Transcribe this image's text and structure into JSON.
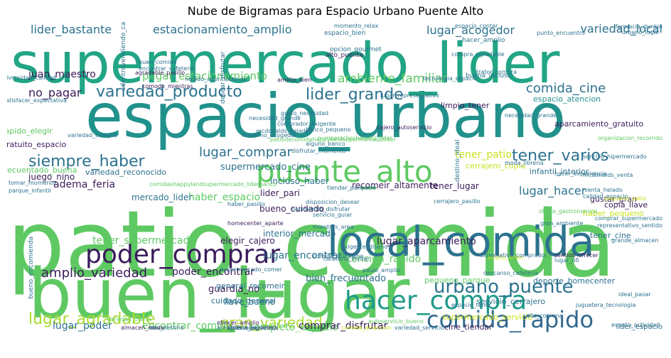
{
  "title": "Nube de Bigramas para Espacio Urbano Puente Alto",
  "words": [
    {
      "text": "patio_comida",
      "color": "#5ec962"
    },
    {
      "text": "espacio_urbano",
      "color": "#21918c"
    },
    {
      "text": "buen_lugar",
      "color": "#5ec962"
    },
    {
      "text": "supermercado_lider",
      "color": "#21a585"
    },
    {
      "text": "local_comida",
      "color": "#2c728e"
    },
    {
      "text": "puente_alto",
      "color": "#5ec962"
    },
    {
      "text": "poder_comprar",
      "color": "#3b1c5a"
    },
    {
      "text": "hacer_compra",
      "color": "#1f9a8a"
    },
    {
      "text": "comida_rapido",
      "color": "#31688e"
    },
    {
      "text": "variedad_producto",
      "color": "#2c728e"
    },
    {
      "text": "lider_grande",
      "color": "#2c728e"
    },
    {
      "text": "urbano_puente",
      "color": "#2c728e"
    },
    {
      "text": "siempre_haber",
      "color": "#2c728e"
    },
    {
      "text": "tener_varios",
      "color": "#2c728e"
    },
    {
      "text": "comida_cine",
      "color": "#2c728e"
    },
    {
      "text": "lugar_agradable",
      "color": "#a8db34"
    },
    {
      "text": "gran_variedad",
      "color": "#a8db34"
    },
    {
      "text": "amplio_variedad",
      "color": "#3b1c5a"
    },
    {
      "text": "lugar_comprar",
      "color": "#2c728e"
    },
    {
      "text": "ambiente_familiar",
      "color": "#5ec962"
    },
    {
      "text": "estacionamiento_amplio",
      "color": "#2c728e"
    },
    {
      "text": "lider_bastante",
      "color": "#2c728e"
    },
    {
      "text": "lugar_acogedor",
      "color": "#2c728e"
    },
    {
      "text": "variedad_local",
      "color": "#2c728e"
    },
    {
      "text": "pagar_estacionamiento",
      "color": "#5ec962"
    },
    {
      "text": "juan_maestro",
      "color": "#3b1c5a"
    },
    {
      "text": "no_pagar",
      "color": "#3b1c5a"
    },
    {
      "text": "lugar_hacer",
      "color": "#2c728e"
    },
    {
      "text": "tener_patio",
      "color": "#c8e020"
    },
    {
      "text": "adema_feria",
      "color": "#3b1c5a"
    },
    {
      "text": "haber_espacio",
      "color": "#5ec962"
    },
    {
      "text": "supermercado_cine",
      "color": "#2c728e"
    },
    {
      "text": "tener_supermercado",
      "color": "#5ec962"
    },
    {
      "text": "encontrar_comida",
      "color": "#5ec962"
    },
    {
      "text": "lugar_poder",
      "color": "#2c728e"
    },
    {
      "text": "completo_espacio",
      "color": "#5ec962"
    },
    {
      "text": "comprar_disfrutar",
      "color": "#3b1c5a"
    },
    {
      "text": "poder_encontrar",
      "color": "#3b1c5a"
    },
    {
      "text": "lugar_encontrar",
      "color": "#2c728e"
    },
    {
      "text": "lugar_aparcamiento",
      "color": "#3b1c5a"
    },
    {
      "text": "atencion_rapido",
      "color": "#5ec962"
    },
    {
      "text": "guardia_no",
      "color": "#3b1c5a"
    },
    {
      "text": "llave_bueno",
      "color": "#2c728e"
    },
    {
      "text": "elegir_cajero",
      "color": "#3b1c5a"
    },
    {
      "text": "tener_lugar",
      "color": "#3b1c5a"
    },
    {
      "text": "lider_pari",
      "color": "#3b1c5a"
    },
    {
      "text": "incluso_haber",
      "color": "#2c728e"
    },
    {
      "text": "recomeir_altamente",
      "color": "#3b1c5a"
    },
    {
      "text": "bueno_cuidado",
      "color": "#3b1c5a"
    },
    {
      "text": "interior_mercado",
      "color": "#2c728e"
    },
    {
      "text": "bien_frecuentado",
      "color": "#2c728e"
    },
    {
      "text": "cuidado_general",
      "color": "#2c728e"
    },
    {
      "text": "general_recomeir",
      "color": "#2c728e"
    },
    {
      "text": "mercado_lider",
      "color": "#2c728e"
    },
    {
      "text": "juego_nino",
      "color": "#3b1c5a"
    },
    {
      "text": "gratuito_espacio",
      "color": "#3b1c5a"
    },
    {
      "text": "rapido_elegir",
      "color": "#5ec962"
    },
    {
      "text": "frecuentado_buena",
      "color": "#5ec962"
    },
    {
      "text": "variedad_reconocido",
      "color": "#2c728e"
    },
    {
      "text": "aparcamiento_gratuito",
      "color": "#3b1c5a"
    },
    {
      "text": "limpio_tener",
      "color": "#3b1c5a"
    },
    {
      "text": "espacio_atencion",
      "color": "#21918c"
    },
    {
      "text": "infantil_interior",
      "color": "#2c728e"
    },
    {
      "text": "haber_pequeno",
      "color": "#c8e020"
    },
    {
      "text": "copia_llave",
      "color": "#3b1c5a"
    },
    {
      "text": "gustar_gran",
      "color": "#3b1c5a"
    },
    {
      "text": "tener_cine",
      "color": "#2c728e"
    },
    {
      "text": "deporte_homecenter",
      "color": "#2c728e"
    },
    {
      "text": "supermercado_servicio",
      "color": "#c8e020"
    },
    {
      "text": "servicio_cerrajero",
      "color": "#2c728e"
    },
    {
      "text": "pequeno_parque",
      "color": "#5ec962"
    },
    {
      "text": "cine_tiendar",
      "color": "#3b1c5a"
    },
    {
      "text": "cerrajero_copia",
      "color": "#c8e020"
    },
    {
      "text": "lider_espacio",
      "color": "#2c728e"
    },
    {
      "text": "espacio_bien",
      "color": "#2c728e"
    },
    {
      "text": "hacer_amplio",
      "color": "#2c728e"
    },
    {
      "text": "opcion_gourmet",
      "color": "#2c728e"
    },
    {
      "text": "alto_puente",
      "color": "#3b1c5a"
    },
    {
      "text": "buena_incluso",
      "color": "#2c728e"
    },
    {
      "text": "comodo_mientras",
      "color": "#3b1c5a"
    },
    {
      "text": "amplio_bien",
      "color": "#3b1c5a"
    },
    {
      "text": "buen_comida",
      "color": "#2c728e"
    },
    {
      "text": "banco_pequeno",
      "color": "#2c728e"
    },
    {
      "text": "alguno_banco",
      "color": "#2c728e"
    },
    {
      "text": "cajero_autoservicio",
      "color": "#3b1c5a"
    },
    {
      "text": "gusto_necesidad",
      "color": "#2c728e"
    },
    {
      "text": "necesidad_grande",
      "color": "#2c728e"
    },
    {
      "text": "tecnologia_espacio",
      "color": "#2c728e"
    },
    {
      "text": "trator_compra",
      "color": "#2c728e"
    },
    {
      "text": "variedad_compra",
      "color": "#2c728e"
    },
    {
      "text": "helado_adentroteindo",
      "color": "#2c728e"
    },
    {
      "text": "diversidad_calidad",
      "color": "#2c728e"
    },
    {
      "text": "satisfacer_expectativa",
      "color": "#2c728e"
    },
    {
      "text": "supermercado_comer",
      "color": "#2c728e"
    },
    {
      "text": "servicio_guiar",
      "color": "#2c728e"
    },
    {
      "text": "mientras_area",
      "color": "#2c728e"
    },
    {
      "text": "disposicion_desear",
      "color": "#2c728e"
    },
    {
      "text": "comprar_supermercado",
      "color": "#2c728e"
    },
    {
      "text": "representativo_sentido",
      "color": "#2c728e"
    },
    {
      "text": "grande_almacen",
      "color": "#2c728e"
    },
    {
      "text": "oferta_gastronomico",
      "color": "#5ec962"
    },
    {
      "text": "paulo_amplio",
      "color": "#2c728e"
    },
    {
      "text": "sentido_ofrecer",
      "color": "#3b1c5a"
    },
    {
      "text": "libreria_juguetera",
      "color": "#3b1c5a"
    },
    {
      "text": "diseno_moderno",
      "color": "#2c728e"
    },
    {
      "text": "ofrecer_amplio",
      "color": "#3b1c5a"
    },
    {
      "text": "almacen_moda",
      "color": "#3b1c5a"
    },
    {
      "text": "area_descanso",
      "color": "#2c728e"
    },
    {
      "text": "variedad_oferta",
      "color": "#5ec962"
    },
    {
      "text": "comida_atraccion",
      "color": "#c8e020"
    },
    {
      "text": "variedad_servicio",
      "color": "#2c728e"
    },
    {
      "text": "evento_actividad",
      "color": "#2c728e"
    },
    {
      "text": "juguetera_tecnologia",
      "color": "#2c728e"
    },
    {
      "text": "alto_comuna",
      "color": "#2c728e"
    },
    {
      "text": "descanso_cafeteria",
      "color": "#2c728e"
    },
    {
      "text": "espacio_tener",
      "color": "#2c728e"
    },
    {
      "text": "autoservicio_bueno",
      "color": "#5ec962"
    },
    {
      "text": "encomienda_deporte",
      "color": "#5ec962"
    },
    {
      "text": "bueno_encomienda",
      "color": "#2c728e"
    },
    {
      "text": "estacionamientotienir_mcdonalds",
      "color": "#3b1c5a"
    },
    {
      "text": "alto_destino",
      "color": "#2c728e"
    },
    {
      "text": "tomar_momento",
      "color": "#2c728e"
    },
    {
      "text": "parque_infantil",
      "color": "#2c728e"
    },
    {
      "text": "destino_ideal",
      "color": "#2c728e"
    },
    {
      "text": "momento_relax",
      "color": "#2c728e"
    },
    {
      "text": "farmacia_dunkin",
      "color": "#2c728e"
    },
    {
      "text": "punto_encuentro",
      "color": "#2c728e"
    },
    {
      "text": "urbano_lugar",
      "color": "#2c728e"
    },
    {
      "text": "espacio_contar",
      "color": "#2c728e"
    },
    {
      "text": "compra_agradable",
      "color": "#2c728e"
    },
    {
      "text": "agradable_pasillo",
      "color": "#3b1c5a"
    },
    {
      "text": "encontrar_cafeteria",
      "color": "#2c728e"
    },
    {
      "text": "homecenter_aparte",
      "color": "#3b1c5a"
    },
    {
      "text": "cafeteria_invitar",
      "color": "#2c728e"
    },
    {
      "text": "lugar_representativo",
      "color": "#2c728e"
    },
    {
      "text": "sencillo_hipermercado",
      "color": "#2c728e"
    },
    {
      "text": "mcdonalds_venta",
      "color": "#2c728e"
    },
    {
      "text": "venta_helado",
      "color": "#2c728e"
    },
    {
      "text": "calidad_espacio",
      "color": "#2c728e"
    },
    {
      "text": "ideal_pasar",
      "color": "#2c728e"
    },
    {
      "text": "pequeno_patio",
      "color": "#c8e020"
    },
    {
      "text": "amplio_buen",
      "color": "#c8e020"
    },
    {
      "text": "lugar_no",
      "color": "#2c728e"
    },
    {
      "text": "moda_libreria",
      "color": "#2c728e"
    },
    {
      "text": "cerrajero_pasillo",
      "color": "#2c728e"
    },
    {
      "text": "nacimiento_disfrutar",
      "color": "#2c728e"
    },
    {
      "text": "gran_ambiente",
      "color": "#2c728e"
    },
    {
      "text": "expectativa_comprador",
      "color": "#2c728e"
    },
    {
      "text": "exigente_diseno",
      "color": "#2c728e"
    },
    {
      "text": "comprador_exigente",
      "color": "#2c728e"
    },
    {
      "text": "moderno_acogedor",
      "color": "#2c728e"
    },
    {
      "text": "mcdonalds_helado",
      "color": "#2c728e"
    },
    {
      "text": "patiodecomidahappylandsupermercadolider",
      "color": "#5ec962"
    },
    {
      "text": "comidashappylandsupermercado_liderbanco",
      "color": "#5ec962"
    },
    {
      "text": "adentrovendiendo_cabritauste",
      "color": "#2c728e"
    },
    {
      "text": "desear_disfrutar",
      "color": "#2c728e"
    },
    {
      "text": "disfrutar_momento",
      "color": "#2c728e"
    },
    {
      "text": "pumperschschersetz_lider",
      "color": "#5ec962"
    },
    {
      "text": "tiendar_paripatio",
      "color": "#2c728e"
    },
    {
      "text": "organizacion_recorrido",
      "color": "#5ec962"
    },
    {
      "text": "comida_asimismo",
      "color": "#2c728e"
    },
    {
      "text": "haber_pasillo",
      "color": "#2c728e"
    },
    {
      "text": "necesidad_grande",
      "color": "#2c728e"
    },
    {
      "text": "hacer_experiencia",
      "color": "#2c728e"
    }
  ]
}
